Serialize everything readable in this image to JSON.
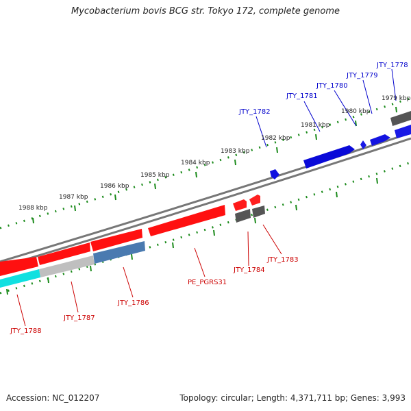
{
  "title": "Mycobacterium bovis BCG str. Tokyo 172, complete genome",
  "footer": {
    "accession": "Accession: NC_012207",
    "summary": "Topology: circular; Length: 4,371,711 bp; Genes: 3,993"
  },
  "scale_labels": [
    "1979 kbp",
    "1980 kbp",
    "1981 kbp",
    "1982 kbp",
    "1983 kbp",
    "1984 kbp",
    "1985 kbp",
    "1986 kbp",
    "1987 kbp",
    "1988 kbp"
  ],
  "gene_labels": {
    "forward": [
      "JTY_1778",
      "JTY_1779",
      "JTY_1780",
      "JTY_1781",
      "JTY_1782"
    ],
    "reverse": [
      "JTY_1783",
      "JTY_1784",
      "PE_PGRS31",
      "JTY_1786",
      "JTY_1787",
      "JTY_1788"
    ]
  },
  "colors": {
    "forward_gene": "#0000dd",
    "reverse_gene": "#ff0000",
    "backbone": "#777777",
    "tick": "#1a8a1a",
    "forward_label": "#0000cc",
    "reverse_label": "#cc0000"
  }
}
